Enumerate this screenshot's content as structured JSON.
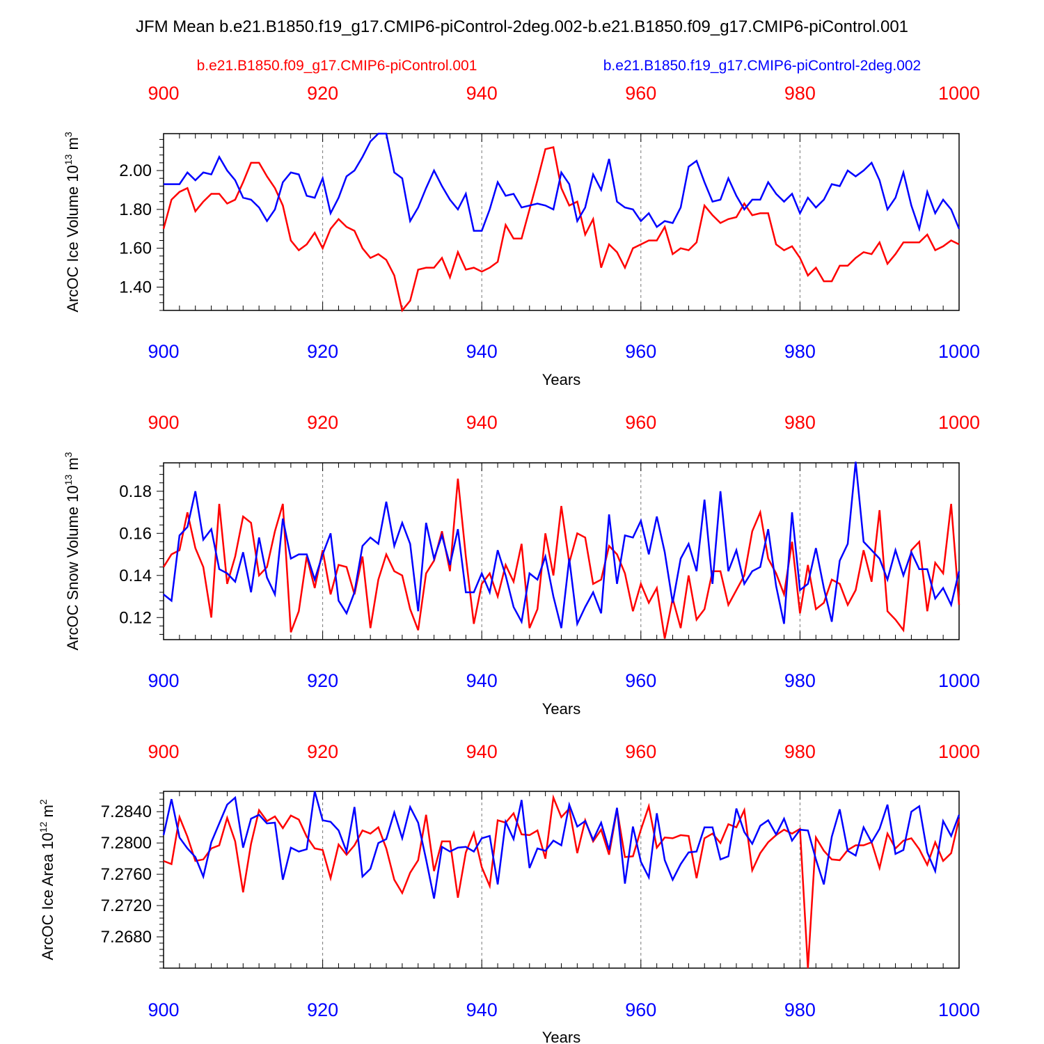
{
  "title": "JFM Mean b.e21.B1850.f19_g17.CMIP6-piControl-2deg.002-b.e21.B1850.f09_g17.CMIP6-piControl.001",
  "legend": {
    "red_label": "b.e21.B1850.f09_g17.CMIP6-piControl.001",
    "blue_label": "b.e21.B1850.f19_g17.CMIP6-piControl-2deg.002"
  },
  "colors": {
    "red": "#ff0000",
    "blue": "#0000ff",
    "axis": "#000000",
    "grid": "#777777"
  },
  "chart_data": [
    {
      "type": "line",
      "title": "",
      "xlabel": "Years",
      "ylabel": "ArcOC Ice Volume 10",
      "ylabel_exp": "13",
      "ylabel_unit": " m",
      "ylabel_unit_exp": "3",
      "xlim": [
        900,
        1000
      ],
      "ylim": [
        1.28,
        2.19
      ],
      "xticks": [
        "900",
        "920",
        "940",
        "960",
        "980",
        "1000"
      ],
      "yticks": [
        "1.40",
        "1.60",
        "1.80",
        "2.00"
      ],
      "grid": "vertical dashed",
      "x": [
        900,
        901,
        902,
        903,
        904,
        905,
        906,
        907,
        908,
        909,
        910,
        911,
        912,
        913,
        914,
        915,
        916,
        917,
        918,
        919,
        920,
        921,
        922,
        923,
        924,
        925,
        926,
        927,
        928,
        929,
        930,
        931,
        932,
        933,
        934,
        935,
        936,
        937,
        938,
        939,
        940,
        941,
        942,
        943,
        944,
        945,
        946,
        947,
        948,
        949,
        950,
        951,
        952,
        953,
        954,
        955,
        956,
        957,
        958,
        959,
        960,
        961,
        962,
        963,
        964,
        965,
        966,
        967,
        968,
        969,
        970,
        971,
        972,
        973,
        974,
        975,
        976,
        977,
        978,
        979,
        980,
        981,
        982,
        983,
        984,
        985,
        986,
        987,
        988,
        989,
        990,
        991,
        992,
        993,
        994,
        995,
        996,
        997,
        998,
        999,
        1000
      ],
      "series": [
        {
          "name": "b.e21.B1850.f09_g17.CMIP6-piControl.001",
          "color": "red",
          "values": [
            1.7,
            1.85,
            1.89,
            1.91,
            1.79,
            1.84,
            1.88,
            1.88,
            1.83,
            1.85,
            1.94,
            2.04,
            2.04,
            1.97,
            1.91,
            1.82,
            1.64,
            1.59,
            1.62,
            1.68,
            1.6,
            1.7,
            1.75,
            1.71,
            1.69,
            1.6,
            1.55,
            1.57,
            1.54,
            1.46,
            1.28,
            1.33,
            1.49,
            1.5,
            1.5,
            1.55,
            1.45,
            1.58,
            1.49,
            1.5,
            1.48,
            1.5,
            1.53,
            1.72,
            1.65,
            1.65,
            1.8,
            1.95,
            2.11,
            2.12,
            1.91,
            1.82,
            1.84,
            1.67,
            1.75,
            1.5,
            1.62,
            1.58,
            1.5,
            1.6,
            1.62,
            1.64,
            1.64,
            1.71,
            1.57,
            1.6,
            1.59,
            1.63,
            1.82,
            1.77,
            1.73,
            1.75,
            1.76,
            1.83,
            1.77,
            1.78,
            1.78,
            1.62,
            1.59,
            1.61,
            1.55,
            1.46,
            1.5,
            1.43,
            1.43,
            1.51,
            1.51,
            1.55,
            1.58,
            1.57,
            1.63,
            1.52,
            1.57,
            1.63,
            1.63,
            1.63,
            1.67,
            1.59,
            1.61,
            1.64,
            1.62
          ]
        },
        {
          "name": "b.e21.B1850.f19_g17.CMIP6-piControl-2deg.002",
          "color": "blue",
          "values": [
            1.93,
            1.93,
            1.93,
            1.99,
            1.95,
            1.99,
            1.98,
            2.07,
            2.0,
            1.95,
            1.86,
            1.85,
            1.81,
            1.74,
            1.8,
            1.94,
            1.99,
            1.98,
            1.87,
            1.86,
            1.96,
            1.78,
            1.86,
            1.97,
            2.0,
            2.07,
            2.15,
            2.19,
            2.19,
            1.99,
            1.96,
            1.74,
            1.81,
            1.91,
            2.0,
            1.92,
            1.85,
            1.8,
            1.88,
            1.69,
            1.69,
            1.8,
            1.94,
            1.87,
            1.88,
            1.81,
            1.82,
            1.83,
            1.82,
            1.8,
            1.99,
            1.93,
            1.74,
            1.81,
            1.98,
            1.9,
            2.06,
            1.84,
            1.81,
            1.8,
            1.74,
            1.78,
            1.71,
            1.74,
            1.73,
            1.81,
            2.02,
            2.05,
            1.94,
            1.84,
            1.85,
            1.96,
            1.87,
            1.8,
            1.85,
            1.85,
            1.94,
            1.88,
            1.84,
            1.88,
            1.78,
            1.86,
            1.81,
            1.85,
            1.93,
            1.92,
            2.0,
            1.97,
            2.0,
            2.04,
            1.95,
            1.8,
            1.86,
            1.99,
            1.82,
            1.7,
            1.89,
            1.78,
            1.85,
            1.8,
            1.7
          ]
        }
      ]
    },
    {
      "type": "line",
      "title": "",
      "xlabel": "Years",
      "ylabel": "ArcOC Snow Volume 10",
      "ylabel_exp": "13",
      "ylabel_unit": " m",
      "ylabel_unit_exp": "3",
      "xlim": [
        900,
        1000
      ],
      "ylim": [
        0.1095,
        0.1935
      ],
      "xticks": [
        "900",
        "920",
        "940",
        "960",
        "980",
        "1000"
      ],
      "yticks": [
        "0.12",
        "0.14",
        "0.16",
        "0.18"
      ],
      "grid": "vertical dashed",
      "x": [
        900,
        901,
        902,
        903,
        904,
        905,
        906,
        907,
        908,
        909,
        910,
        911,
        912,
        913,
        914,
        915,
        916,
        917,
        918,
        919,
        920,
        921,
        922,
        923,
        924,
        925,
        926,
        927,
        928,
        929,
        930,
        931,
        932,
        933,
        934,
        935,
        936,
        937,
        938,
        939,
        940,
        941,
        942,
        943,
        944,
        945,
        946,
        947,
        948,
        949,
        950,
        951,
        952,
        953,
        954,
        955,
        956,
        957,
        958,
        959,
        960,
        961,
        962,
        963,
        964,
        965,
        966,
        967,
        968,
        969,
        970,
        971,
        972,
        973,
        974,
        975,
        976,
        977,
        978,
        979,
        980,
        981,
        982,
        983,
        984,
        985,
        986,
        987,
        988,
        989,
        990,
        991,
        992,
        993,
        994,
        995,
        996,
        997,
        998,
        999,
        1000
      ],
      "series": [
        {
          "name": "b.e21.B1850.f09_g17.CMIP6-piControl.001",
          "color": "red",
          "values": [
            0.144,
            0.15,
            0.152,
            0.17,
            0.153,
            0.144,
            0.12,
            0.174,
            0.136,
            0.149,
            0.168,
            0.165,
            0.14,
            0.144,
            0.161,
            0.174,
            0.113,
            0.123,
            0.149,
            0.134,
            0.152,
            0.131,
            0.145,
            0.144,
            0.131,
            0.149,
            0.115,
            0.138,
            0.15,
            0.142,
            0.14,
            0.124,
            0.114,
            0.141,
            0.147,
            0.161,
            0.142,
            0.186,
            0.149,
            0.117,
            0.136,
            0.141,
            0.13,
            0.145,
            0.137,
            0.155,
            0.115,
            0.124,
            0.16,
            0.14,
            0.173,
            0.146,
            0.16,
            0.158,
            0.136,
            0.138,
            0.154,
            0.15,
            0.141,
            0.123,
            0.136,
            0.127,
            0.134,
            0.11,
            0.129,
            0.115,
            0.14,
            0.119,
            0.124,
            0.142,
            0.142,
            0.126,
            0.133,
            0.14,
            0.161,
            0.17,
            0.148,
            0.141,
            0.131,
            0.156,
            0.122,
            0.145,
            0.124,
            0.127,
            0.138,
            0.136,
            0.126,
            0.133,
            0.152,
            0.137,
            0.171,
            0.123,
            0.119,
            0.114,
            0.152,
            0.156,
            0.123,
            0.146,
            0.141,
            0.174,
            0.126
          ]
        },
        {
          "name": "b.e21.B1850.f19_g17.CMIP6-piControl-2deg.002",
          "color": "blue",
          "values": [
            0.131,
            0.128,
            0.159,
            0.163,
            0.18,
            0.157,
            0.162,
            0.143,
            0.141,
            0.137,
            0.151,
            0.132,
            0.158,
            0.139,
            0.131,
            0.167,
            0.148,
            0.15,
            0.15,
            0.138,
            0.15,
            0.16,
            0.128,
            0.122,
            0.132,
            0.154,
            0.158,
            0.155,
            0.175,
            0.154,
            0.165,
            0.155,
            0.123,
            0.165,
            0.148,
            0.159,
            0.145,
            0.162,
            0.132,
            0.132,
            0.141,
            0.132,
            0.152,
            0.14,
            0.125,
            0.118,
            0.141,
            0.138,
            0.149,
            0.13,
            0.115,
            0.148,
            0.117,
            0.125,
            0.132,
            0.122,
            0.169,
            0.136,
            0.159,
            0.158,
            0.166,
            0.15,
            0.168,
            0.151,
            0.127,
            0.148,
            0.155,
            0.142,
            0.176,
            0.136,
            0.18,
            0.142,
            0.152,
            0.136,
            0.142,
            0.144,
            0.162,
            0.135,
            0.117,
            0.17,
            0.133,
            0.136,
            0.153,
            0.134,
            0.118,
            0.147,
            0.155,
            0.194,
            0.156,
            0.152,
            0.148,
            0.138,
            0.152,
            0.14,
            0.151,
            0.143,
            0.143,
            0.129,
            0.134,
            0.126,
            0.142
          ]
        }
      ]
    },
    {
      "type": "line",
      "title": "",
      "xlabel": "Years",
      "ylabel": "ArcOC Ice Area 10",
      "ylabel_exp": "12",
      "ylabel_unit": " m",
      "ylabel_unit_exp": "2",
      "xlim": [
        900,
        1000
      ],
      "ylim": [
        7.264,
        7.2866
      ],
      "xticks": [
        "900",
        "920",
        "940",
        "960",
        "980",
        "1000"
      ],
      "yticks": [
        "7.2680",
        "7.2720",
        "7.2760",
        "7.2800",
        "7.2840"
      ],
      "grid": "vertical dashed",
      "x": [
        900,
        901,
        902,
        903,
        904,
        905,
        906,
        907,
        908,
        909,
        910,
        911,
        912,
        913,
        914,
        915,
        916,
        917,
        918,
        919,
        920,
        921,
        922,
        923,
        924,
        925,
        926,
        927,
        928,
        929,
        930,
        931,
        932,
        933,
        934,
        935,
        936,
        937,
        938,
        939,
        940,
        941,
        942,
        943,
        944,
        945,
        946,
        947,
        948,
        949,
        950,
        951,
        952,
        953,
        954,
        955,
        956,
        957,
        958,
        959,
        960,
        961,
        962,
        963,
        964,
        965,
        966,
        967,
        968,
        969,
        970,
        971,
        972,
        973,
        974,
        975,
        976,
        977,
        978,
        979,
        980,
        981,
        982,
        983,
        984,
        985,
        986,
        987,
        988,
        989,
        990,
        991,
        992,
        993,
        994,
        995,
        996,
        997,
        998,
        999,
        1000
      ],
      "series": [
        {
          "name": "b.e21.B1850.f09_g17.CMIP6-piControl.001",
          "color": "red",
          "values": [
            7.2777,
            7.2773,
            7.2833,
            7.2808,
            7.2777,
            7.2779,
            7.2793,
            7.2797,
            7.2832,
            7.2802,
            7.2737,
            7.2799,
            7.2842,
            7.2828,
            7.2834,
            7.2819,
            7.2835,
            7.283,
            7.2808,
            7.2793,
            7.2791,
            7.2755,
            7.2798,
            7.2785,
            7.2797,
            7.2816,
            7.2812,
            7.282,
            7.2793,
            7.2753,
            7.2736,
            7.2762,
            7.2778,
            7.2836,
            7.2764,
            7.2802,
            7.2802,
            7.273,
            7.2788,
            7.2813,
            7.2769,
            7.2745,
            7.2829,
            7.2826,
            7.2838,
            7.2811,
            7.281,
            7.2816,
            7.278,
            7.2858,
            7.2833,
            7.2844,
            7.2787,
            7.2829,
            7.2802,
            7.2817,
            7.2785,
            7.2843,
            7.2782,
            7.2783,
            7.2817,
            7.2847,
            7.2794,
            7.2807,
            7.2806,
            7.281,
            7.2809,
            7.2755,
            7.2806,
            7.2812,
            7.28,
            7.2824,
            7.282,
            7.2842,
            7.2765,
            7.2787,
            7.2801,
            7.281,
            7.2817,
            7.2812,
            7.2818,
            7.264,
            7.2807,
            7.279,
            7.2779,
            7.2778,
            7.2791,
            7.2797,
            7.2797,
            7.2801,
            7.2768,
            7.2812,
            7.2793,
            7.2803,
            7.2806,
            7.2792,
            7.2772,
            7.2801,
            7.2777,
            7.2787,
            7.2831
          ]
        },
        {
          "name": "b.e21.B1850.f19_g17.CMIP6-piControl-2deg.002",
          "color": "blue",
          "values": [
            7.281,
            7.2856,
            7.2807,
            7.2793,
            7.2782,
            7.2757,
            7.2801,
            7.2825,
            7.2849,
            7.2858,
            7.2794,
            7.2831,
            7.2836,
            7.2825,
            7.2826,
            7.2753,
            7.2794,
            7.2789,
            7.2792,
            7.2866,
            7.2829,
            7.2827,
            7.2816,
            7.2789,
            7.2846,
            7.2757,
            7.2767,
            7.28,
            7.2805,
            7.2839,
            7.2806,
            7.2846,
            7.2826,
            7.2779,
            7.2729,
            7.2795,
            7.2789,
            7.2794,
            7.2795,
            7.2789,
            7.2806,
            7.2809,
            7.2747,
            7.2827,
            7.2805,
            7.2855,
            7.2768,
            7.2793,
            7.279,
            7.2803,
            7.2797,
            7.2849,
            7.2821,
            7.2828,
            7.2804,
            7.2826,
            7.2791,
            7.2845,
            7.2748,
            7.2821,
            7.2776,
            7.2756,
            7.2838,
            7.2778,
            7.2753,
            7.2773,
            7.2788,
            7.2789,
            7.282,
            7.282,
            7.2779,
            7.2783,
            7.2844,
            7.2814,
            7.2799,
            7.2822,
            7.2829,
            7.2811,
            7.2831,
            7.2803,
            7.2817,
            7.2816,
            7.2779,
            7.2747,
            7.2808,
            7.2843,
            7.279,
            7.2784,
            7.282,
            7.2801,
            7.2818,
            7.2849,
            7.2786,
            7.2791,
            7.284,
            7.2847,
            7.2788,
            7.2764,
            7.2828,
            7.2809,
            7.2836
          ]
        }
      ]
    }
  ]
}
